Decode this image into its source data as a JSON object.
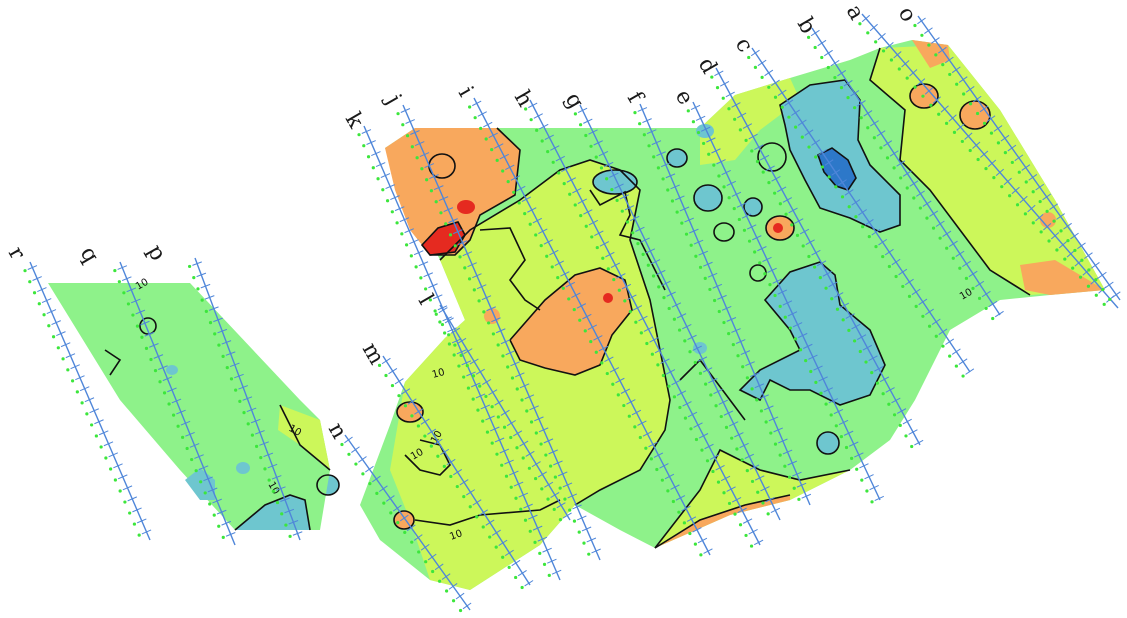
{
  "colors": {
    "background": "#ffffff",
    "band_high_orange": "#F8A85D",
    "band_yellow": "#CCF75A",
    "band_green": "#8EF28A",
    "band_teal": "#6EC6CF",
    "band_blue": "#2D78C9",
    "anomaly_red": "#E52A20",
    "contour": "#111111",
    "survey_line": "#4F86D9",
    "station_label": "#3CE63C"
  },
  "survey_lines": [
    "a",
    "b",
    "c",
    "d",
    "e",
    "f",
    "g",
    "h",
    "i",
    "j",
    "k",
    "l",
    "m",
    "n",
    "o",
    "p",
    "q",
    "r"
  ],
  "contour_labels": [
    "10",
    "10",
    "10",
    "10",
    "10",
    "10",
    "10",
    "10"
  ]
}
